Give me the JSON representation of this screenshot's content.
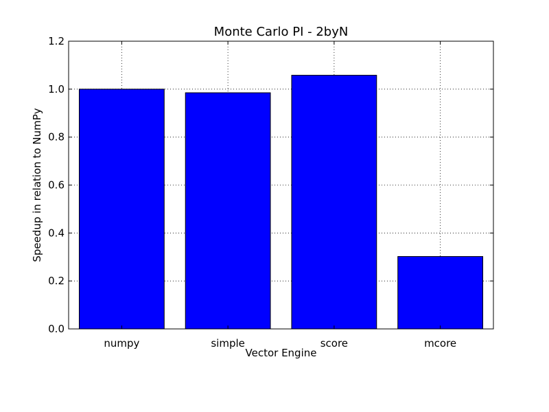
{
  "chart_data": {
    "type": "bar",
    "title": "Monte Carlo PI - 2byN",
    "xlabel": "Vector Engine",
    "ylabel": "Speedup in relation to NumPy",
    "categories": [
      "numpy",
      "simple",
      "score",
      "mcore"
    ],
    "values": [
      1.0,
      0.985,
      1.058,
      0.302
    ],
    "ylim": [
      0,
      1.2
    ],
    "yticks": [
      "0.0",
      "0.2",
      "0.4",
      "0.6",
      "0.8",
      "1.0",
      "1.2"
    ],
    "grid": true,
    "bar_color": "#0000ff"
  }
}
